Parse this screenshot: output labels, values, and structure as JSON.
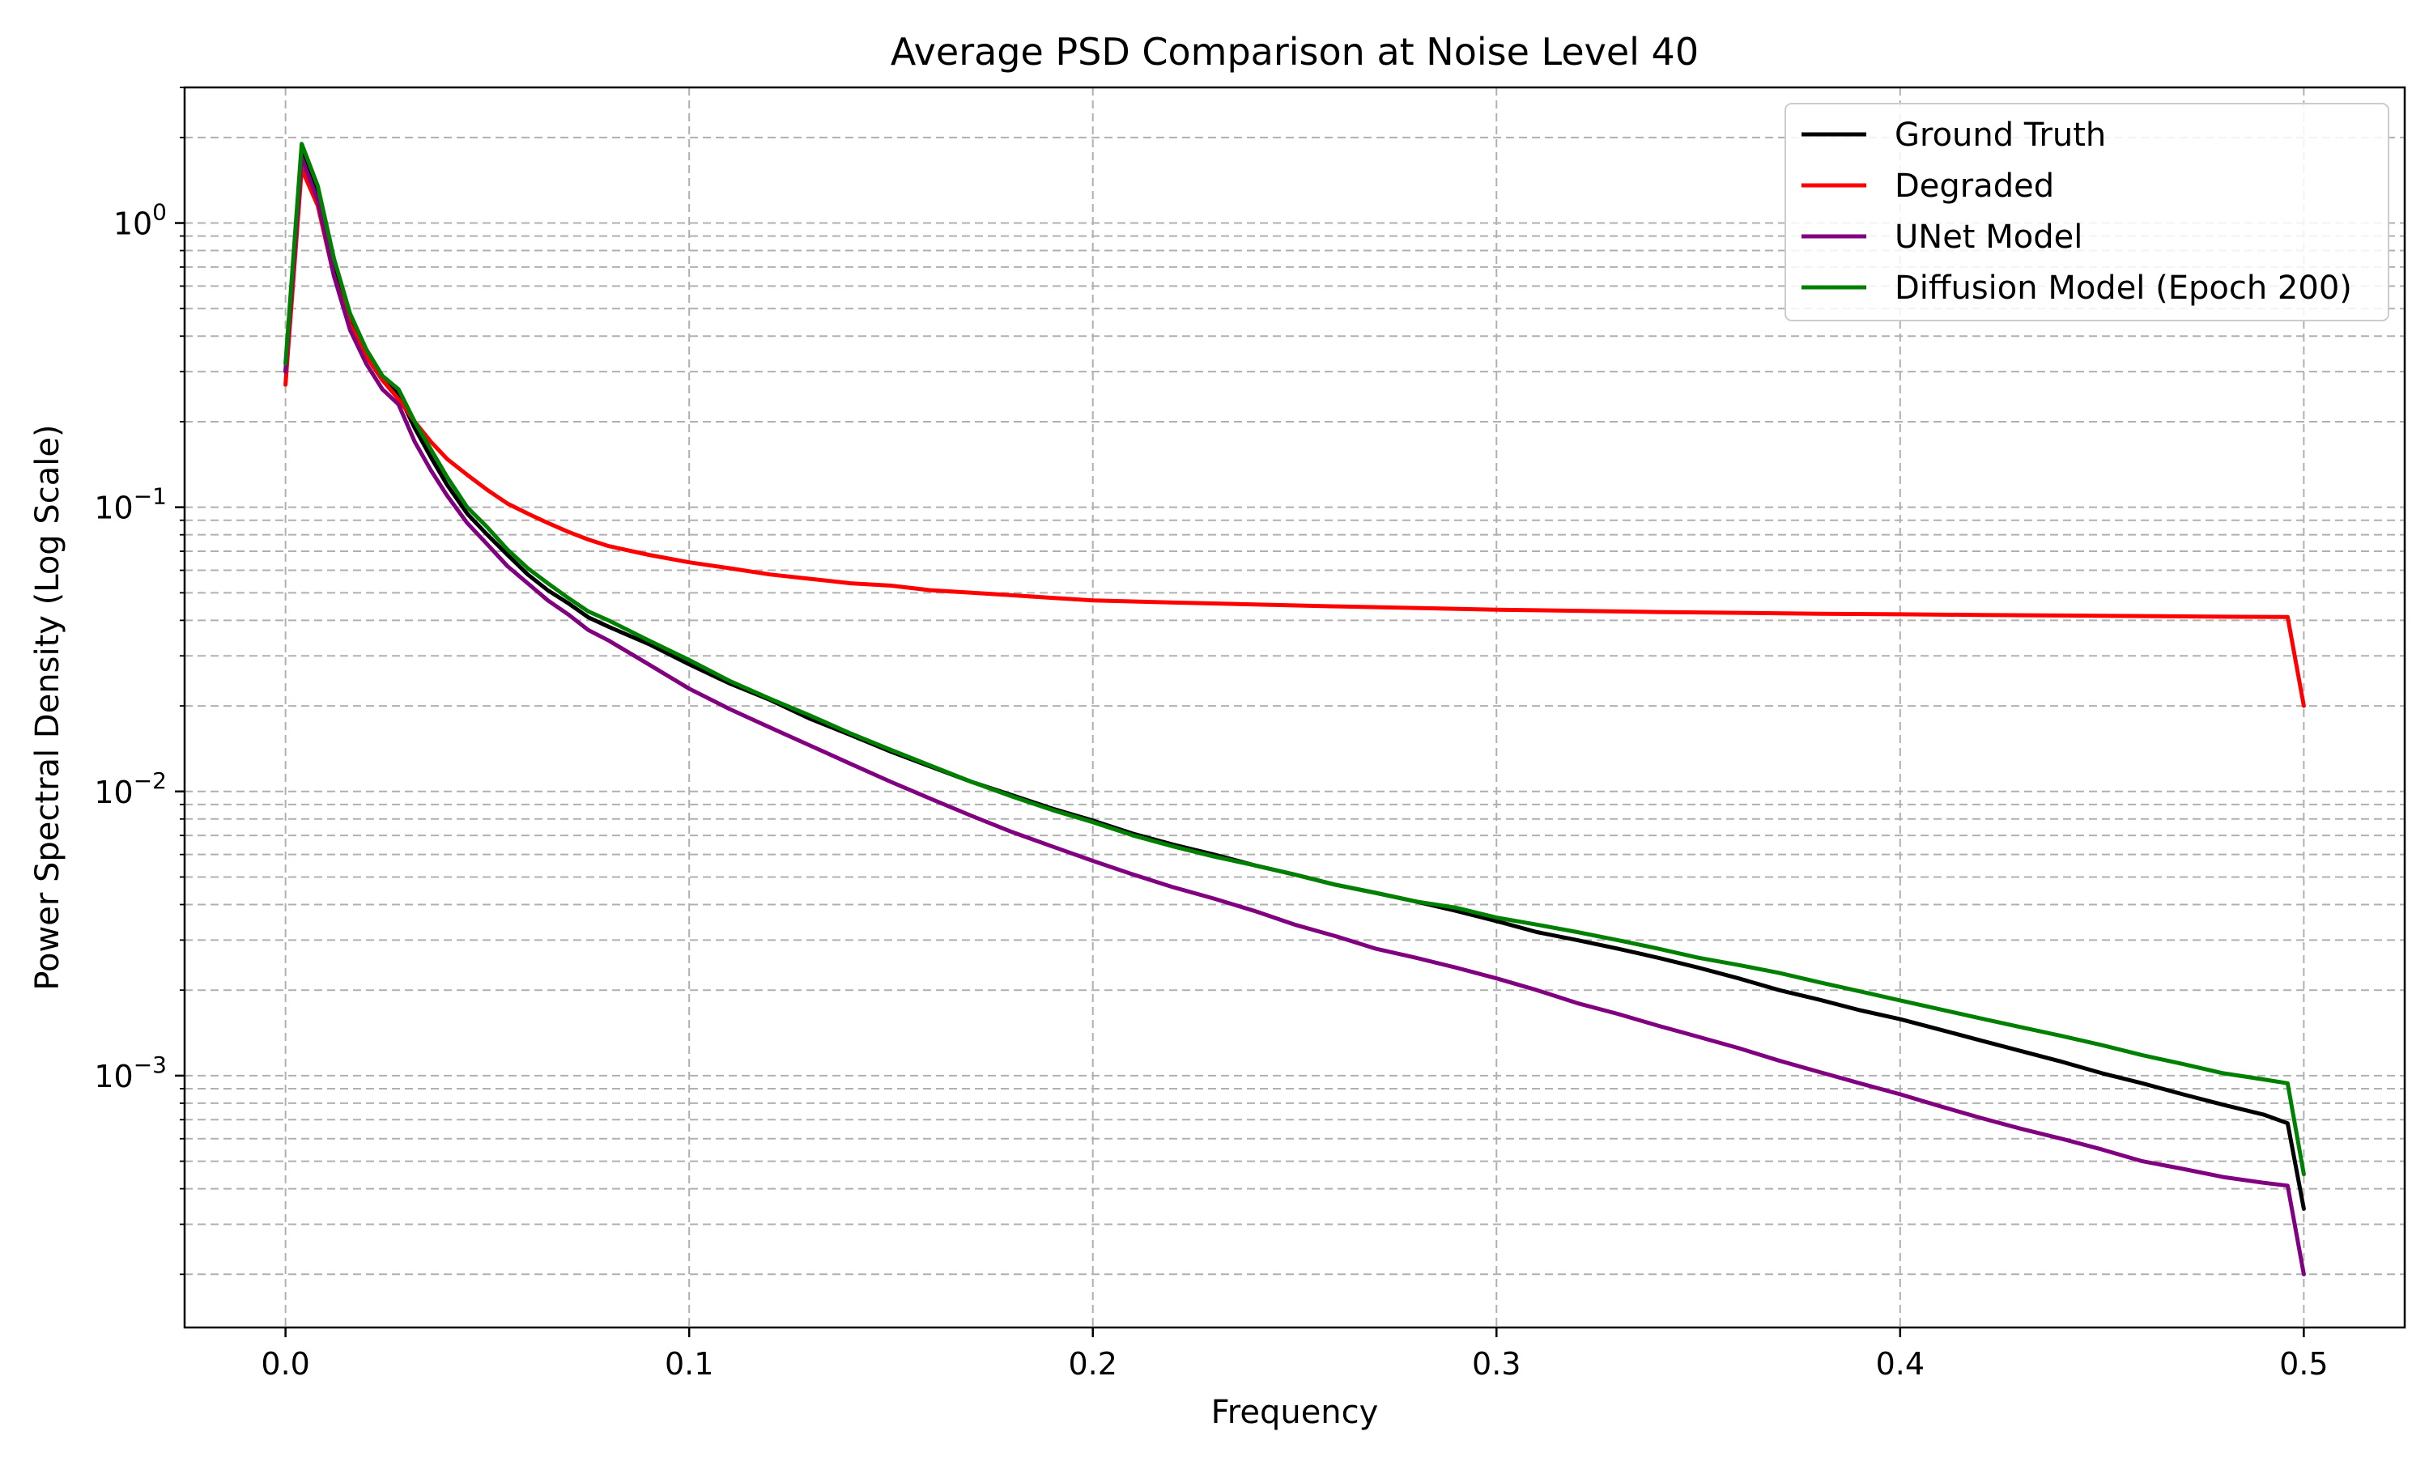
{
  "chart_data": {
    "type": "line",
    "title": "Average PSD Comparison at Noise Level 40",
    "xlabel": "Frequency",
    "ylabel": "Power Spectral Density (Log Scale)",
    "xlim": [
      -0.025,
      0.525
    ],
    "ylim": [
      0.00013,
      3.0
    ],
    "yscale": "log",
    "xticks": [
      0.0,
      0.1,
      0.2,
      0.3,
      0.4,
      0.5
    ],
    "xtick_labels": [
      "0.0",
      "0.1",
      "0.2",
      "0.3",
      "0.4",
      "0.5"
    ],
    "yticks": [
      1,
      0.1,
      0.01,
      0.001
    ],
    "ytick_labels": [
      {
        "base": "10",
        "exp": "0"
      },
      {
        "base": "10",
        "exp": "−1"
      },
      {
        "base": "10",
        "exp": "−2"
      },
      {
        "base": "10",
        "exp": "−3"
      }
    ],
    "grid": true,
    "legend_position": "top-right",
    "series": [
      {
        "name": "Ground Truth",
        "color": "#000000",
        "x": [
          0.0,
          0.004,
          0.008,
          0.012,
          0.016,
          0.02,
          0.024,
          0.028,
          0.032,
          0.036,
          0.04,
          0.045,
          0.05,
          0.055,
          0.06,
          0.065,
          0.07,
          0.075,
          0.08,
          0.09,
          0.1,
          0.11,
          0.12,
          0.13,
          0.14,
          0.15,
          0.16,
          0.17,
          0.18,
          0.19,
          0.2,
          0.21,
          0.22,
          0.23,
          0.24,
          0.25,
          0.26,
          0.27,
          0.28,
          0.29,
          0.3,
          0.31,
          0.32,
          0.33,
          0.34,
          0.35,
          0.36,
          0.37,
          0.38,
          0.39,
          0.4,
          0.41,
          0.42,
          0.43,
          0.44,
          0.45,
          0.46,
          0.47,
          0.48,
          0.49,
          0.496,
          0.5
        ],
        "y": [
          0.3,
          1.8,
          1.3,
          0.7,
          0.45,
          0.34,
          0.28,
          0.25,
          0.19,
          0.15,
          0.12,
          0.095,
          0.08,
          0.068,
          0.058,
          0.051,
          0.046,
          0.041,
          0.038,
          0.033,
          0.028,
          0.024,
          0.021,
          0.018,
          0.0158,
          0.0138,
          0.0122,
          0.0108,
          0.0097,
          0.0087,
          0.0079,
          0.0071,
          0.0065,
          0.006,
          0.0055,
          0.0051,
          0.0047,
          0.0044,
          0.0041,
          0.0038,
          0.0035,
          0.0032,
          0.003,
          0.0028,
          0.0026,
          0.0024,
          0.0022,
          0.002,
          0.00185,
          0.0017,
          0.00158,
          0.00145,
          0.00133,
          0.00122,
          0.00112,
          0.00102,
          0.00094,
          0.00086,
          0.00079,
          0.00073,
          0.00068,
          0.00034
        ]
      },
      {
        "name": "Degraded",
        "color": "#ff0000",
        "x": [
          0.0,
          0.004,
          0.008,
          0.012,
          0.016,
          0.02,
          0.024,
          0.028,
          0.032,
          0.036,
          0.04,
          0.045,
          0.05,
          0.055,
          0.06,
          0.065,
          0.07,
          0.075,
          0.08,
          0.09,
          0.1,
          0.11,
          0.12,
          0.13,
          0.14,
          0.15,
          0.16,
          0.17,
          0.18,
          0.19,
          0.2,
          0.22,
          0.24,
          0.26,
          0.28,
          0.3,
          0.32,
          0.34,
          0.36,
          0.38,
          0.4,
          0.42,
          0.44,
          0.46,
          0.48,
          0.496,
          0.5
        ],
        "y": [
          0.27,
          1.55,
          1.15,
          0.65,
          0.44,
          0.34,
          0.28,
          0.24,
          0.2,
          0.17,
          0.148,
          0.13,
          0.115,
          0.103,
          0.095,
          0.088,
          0.082,
          0.077,
          0.073,
          0.068,
          0.064,
          0.061,
          0.058,
          0.056,
          0.054,
          0.053,
          0.051,
          0.05,
          0.049,
          0.048,
          0.047,
          0.0462,
          0.0455,
          0.0448,
          0.0442,
          0.0436,
          0.0432,
          0.0428,
          0.0425,
          0.0422,
          0.042,
          0.0418,
          0.0416,
          0.0414,
          0.0412,
          0.0411,
          0.02
        ]
      },
      {
        "name": "UNet Model",
        "color": "#800080",
        "x": [
          0.0,
          0.004,
          0.008,
          0.012,
          0.016,
          0.02,
          0.024,
          0.028,
          0.032,
          0.036,
          0.04,
          0.045,
          0.05,
          0.055,
          0.06,
          0.065,
          0.07,
          0.075,
          0.08,
          0.09,
          0.1,
          0.11,
          0.12,
          0.13,
          0.14,
          0.15,
          0.16,
          0.17,
          0.18,
          0.19,
          0.2,
          0.21,
          0.22,
          0.23,
          0.24,
          0.25,
          0.26,
          0.27,
          0.28,
          0.29,
          0.3,
          0.31,
          0.32,
          0.33,
          0.34,
          0.35,
          0.36,
          0.37,
          0.38,
          0.39,
          0.4,
          0.41,
          0.42,
          0.43,
          0.44,
          0.45,
          0.46,
          0.47,
          0.48,
          0.49,
          0.496,
          0.5
        ],
        "y": [
          0.3,
          1.7,
          1.2,
          0.65,
          0.42,
          0.32,
          0.26,
          0.23,
          0.17,
          0.135,
          0.11,
          0.088,
          0.074,
          0.062,
          0.054,
          0.047,
          0.042,
          0.037,
          0.034,
          0.028,
          0.023,
          0.0195,
          0.0168,
          0.0145,
          0.0125,
          0.0108,
          0.0094,
          0.0082,
          0.0072,
          0.0064,
          0.0057,
          0.0051,
          0.0046,
          0.0042,
          0.0038,
          0.0034,
          0.0031,
          0.0028,
          0.0026,
          0.0024,
          0.0022,
          0.002,
          0.0018,
          0.00165,
          0.0015,
          0.00137,
          0.00125,
          0.00113,
          0.00103,
          0.00094,
          0.00086,
          0.00078,
          0.00071,
          0.00065,
          0.0006,
          0.00055,
          0.0005,
          0.00047,
          0.00044,
          0.00042,
          0.00041,
          0.0002
        ]
      },
      {
        "name": "Diffusion Model (Epoch 200)",
        "color": "#008000",
        "x": [
          0.0,
          0.004,
          0.008,
          0.012,
          0.016,
          0.02,
          0.024,
          0.028,
          0.032,
          0.036,
          0.04,
          0.045,
          0.05,
          0.055,
          0.06,
          0.065,
          0.07,
          0.075,
          0.08,
          0.09,
          0.1,
          0.11,
          0.12,
          0.13,
          0.14,
          0.15,
          0.16,
          0.17,
          0.18,
          0.19,
          0.2,
          0.21,
          0.22,
          0.23,
          0.24,
          0.25,
          0.26,
          0.27,
          0.28,
          0.29,
          0.3,
          0.31,
          0.32,
          0.33,
          0.34,
          0.35,
          0.36,
          0.37,
          0.38,
          0.39,
          0.4,
          0.41,
          0.42,
          0.43,
          0.44,
          0.45,
          0.46,
          0.47,
          0.48,
          0.49,
          0.496,
          0.5
        ],
        "y": [
          0.32,
          1.9,
          1.35,
          0.75,
          0.48,
          0.36,
          0.29,
          0.26,
          0.2,
          0.16,
          0.128,
          0.1,
          0.085,
          0.071,
          0.061,
          0.054,
          0.048,
          0.043,
          0.04,
          0.034,
          0.029,
          0.0245,
          0.0212,
          0.0185,
          0.016,
          0.014,
          0.0123,
          0.0108,
          0.0096,
          0.0086,
          0.0078,
          0.007,
          0.0064,
          0.0059,
          0.0055,
          0.0051,
          0.0047,
          0.0044,
          0.0041,
          0.0039,
          0.0036,
          0.0034,
          0.0032,
          0.003,
          0.0028,
          0.0026,
          0.00245,
          0.0023,
          0.00213,
          0.00198,
          0.00184,
          0.00171,
          0.00159,
          0.00148,
          0.00138,
          0.00128,
          0.00118,
          0.0011,
          0.00102,
          0.00097,
          0.00094,
          0.00045
        ]
      }
    ]
  }
}
